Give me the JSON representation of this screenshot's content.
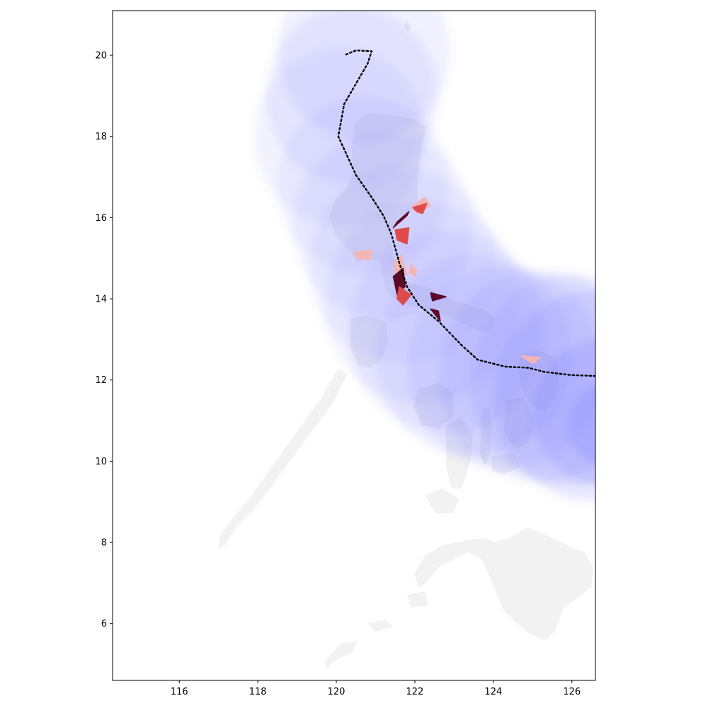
{
  "chart_data": {
    "type": "map",
    "title": "",
    "xlabel": "",
    "ylabel": "",
    "xlim": [
      114.3,
      126.6
    ],
    "ylim": [
      4.6,
      21.1
    ],
    "x_ticks": [
      116,
      118,
      120,
      122,
      124,
      126
    ],
    "y_ticks": [
      6,
      8,
      10,
      12,
      14,
      16,
      18,
      20
    ],
    "grid": false,
    "legend": "none",
    "colors": {
      "land": "#f2f2f2",
      "wind_field": "#6a6aff",
      "track": "#000000",
      "damage_low": "#f3b6b6",
      "damage_mid": "#dd4b4b",
      "damage_high": "#5c0a2a"
    },
    "track": {
      "style": "dotted",
      "points": [
        [
          126.6,
          12.1
        ],
        [
          126.0,
          12.12
        ],
        [
          125.3,
          12.2
        ],
        [
          124.9,
          12.3
        ],
        [
          124.3,
          12.33
        ],
        [
          123.6,
          12.5
        ],
        [
          123.2,
          12.85
        ],
        [
          122.6,
          13.45
        ],
        [
          122.1,
          13.85
        ],
        [
          121.8,
          14.3
        ],
        [
          121.6,
          14.9
        ],
        [
          121.4,
          15.6
        ],
        [
          121.2,
          16.05
        ],
        [
          120.9,
          16.5
        ],
        [
          120.5,
          17.05
        ],
        [
          120.05,
          18.0
        ],
        [
          120.2,
          18.8
        ],
        [
          120.5,
          19.3
        ],
        [
          120.8,
          19.8
        ],
        [
          120.9,
          20.1
        ],
        [
          120.5,
          20.12
        ],
        [
          120.2,
          20.0
        ]
      ]
    },
    "wind_field": [
      [
        120.7,
        20.1,
        2.2,
        0.1
      ],
      [
        120.4,
        19.0,
        2.2,
        0.1
      ],
      [
        120.1,
        18.0,
        2.2,
        0.09
      ],
      [
        120.7,
        16.8,
        2.2,
        0.09
      ],
      [
        121.2,
        15.8,
        2.3,
        0.09
      ],
      [
        121.7,
        14.8,
        2.4,
        0.09
      ],
      [
        122.2,
        13.9,
        2.5,
        0.09
      ],
      [
        122.8,
        13.2,
        2.5,
        0.1
      ],
      [
        123.5,
        12.6,
        2.5,
        0.1
      ],
      [
        124.3,
        12.3,
        2.5,
        0.11
      ],
      [
        125.2,
        12.1,
        2.6,
        0.12
      ],
      [
        126.0,
        12.0,
        2.6,
        0.13
      ],
      [
        126.6,
        11.6,
        2.6,
        0.15
      ],
      [
        126.8,
        11.2,
        1.8,
        0.18
      ],
      [
        126.9,
        10.9,
        1.0,
        0.2
      ]
    ],
    "damage_regions": [
      {
        "level": "high",
        "points": [
          [
            121.45,
            15.75
          ],
          [
            121.8,
            16.05
          ],
          [
            121.85,
            16.15
          ],
          [
            121.55,
            15.9
          ]
        ]
      },
      {
        "level": "mid",
        "points": [
          [
            121.5,
            15.7
          ],
          [
            121.85,
            15.75
          ],
          [
            121.8,
            15.35
          ],
          [
            121.55,
            15.45
          ]
        ]
      },
      {
        "level": "low",
        "points": [
          [
            121.95,
            16.3
          ],
          [
            122.25,
            16.5
          ],
          [
            122.4,
            16.3
          ],
          [
            122.1,
            16.1
          ],
          [
            121.95,
            16.2
          ]
        ]
      },
      {
        "level": "mid",
        "points": [
          [
            121.95,
            16.25
          ],
          [
            122.3,
            16.35
          ],
          [
            122.2,
            16.1
          ],
          [
            122.05,
            16.15
          ]
        ]
      },
      {
        "level": "low",
        "points": [
          [
            120.45,
            15.15
          ],
          [
            120.9,
            15.2
          ],
          [
            120.85,
            14.95
          ],
          [
            120.5,
            15.0
          ]
        ]
      },
      {
        "level": "low",
        "points": [
          [
            121.45,
            14.85
          ],
          [
            121.65,
            15.1
          ],
          [
            121.8,
            14.6
          ],
          [
            121.55,
            14.5
          ]
        ]
      },
      {
        "level": "high",
        "points": [
          [
            121.45,
            14.55
          ],
          [
            121.7,
            14.75
          ],
          [
            121.75,
            14.3
          ],
          [
            121.55,
            14.1
          ]
        ]
      },
      {
        "level": "mid",
        "points": [
          [
            121.6,
            14.3
          ],
          [
            121.9,
            14.1
          ],
          [
            121.7,
            13.85
          ],
          [
            121.55,
            14.0
          ]
        ]
      },
      {
        "level": "low",
        "points": [
          [
            121.9,
            14.85
          ],
          [
            122.05,
            14.7
          ],
          [
            122.0,
            14.55
          ],
          [
            121.85,
            14.65
          ]
        ]
      },
      {
        "level": "high",
        "points": [
          [
            122.4,
            14.15
          ],
          [
            122.8,
            14.05
          ],
          [
            122.45,
            13.95
          ]
        ]
      },
      {
        "level": "high",
        "points": [
          [
            122.4,
            13.75
          ],
          [
            122.65,
            13.45
          ],
          [
            122.6,
            13.7
          ]
        ]
      },
      {
        "level": "low",
        "points": [
          [
            124.7,
            12.6
          ],
          [
            125.2,
            12.55
          ],
          [
            125.0,
            12.4
          ]
        ]
      }
    ]
  }
}
